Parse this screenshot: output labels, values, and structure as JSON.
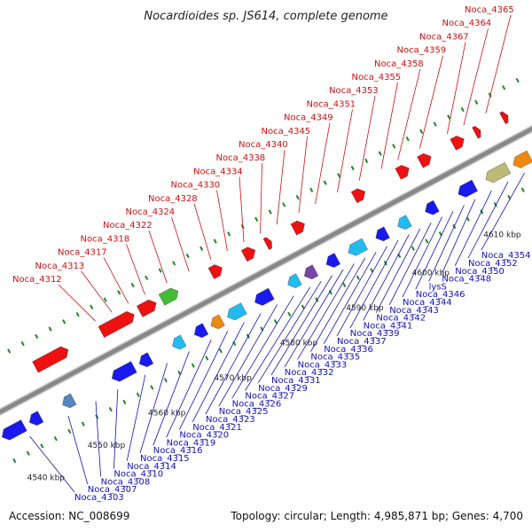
{
  "title": "Nocardioides sp. JS614, complete genome",
  "footer": {
    "accession": "Accession: NC_008699",
    "summary": "Topology: circular; Length: 4,985,871 bp; Genes: 4,700"
  },
  "colors": {
    "backbone": "#888888",
    "forward_gene": "#ee1111",
    "reverse_gene": "#1a1aee",
    "label_forward": "#cc1111",
    "label_reverse": "#1111bb",
    "tick": "#1f8a1f"
  },
  "kbp_ticks": [
    {
      "t": 0.03,
      "label": "4540 kbp"
    },
    {
      "t": 0.14,
      "label": "4550 kbp"
    },
    {
      "t": 0.25,
      "label": "4560 kbp"
    },
    {
      "t": 0.37,
      "label": "4570 kbp"
    },
    {
      "t": 0.49,
      "label": "4580 kbp"
    },
    {
      "t": 0.61,
      "label": "4590 kbp"
    },
    {
      "t": 0.73,
      "label": "4600 kbp"
    },
    {
      "t": 0.86,
      "label": "4610 kbp"
    }
  ],
  "forward_labels": [
    {
      "text": "Noca_4312",
      "t": 0.22
    },
    {
      "text": "Noca_4313",
      "t": 0.25
    },
    {
      "text": "Noca_4317",
      "t": 0.28
    },
    {
      "text": "Noca_4318",
      "t": 0.31
    },
    {
      "text": "Noca_4322",
      "t": 0.35
    },
    {
      "text": "Noca_4324",
      "t": 0.39
    },
    {
      "text": "Noca_4328",
      "t": 0.43
    },
    {
      "text": "Noca_4330",
      "t": 0.46
    },
    {
      "text": "Noca_4334",
      "t": 0.49
    },
    {
      "text": "Noca_4338",
      "t": 0.52
    },
    {
      "text": "Noca_4340",
      "t": 0.55
    },
    {
      "text": "Noca_4345",
      "t": 0.59
    },
    {
      "text": "Noca_4349",
      "t": 0.62
    },
    {
      "text": "Noca_4351",
      "t": 0.66
    },
    {
      "text": "Noca_4353",
      "t": 0.7
    },
    {
      "text": "Noca_4355",
      "t": 0.74
    },
    {
      "text": "Noca_4358",
      "t": 0.77
    },
    {
      "text": "Noca_4359",
      "t": 0.81
    },
    {
      "text": "Noca_4367",
      "t": 0.86
    },
    {
      "text": "Noca_4364",
      "t": 0.89
    },
    {
      "text": "Noca_4365",
      "t": 0.93
    }
  ],
  "reverse_labels": [
    {
      "text": "Noca_4303",
      "t": 0.04
    },
    {
      "text": "Noca_4307",
      "t": 0.11
    },
    {
      "text": "Noca_4308",
      "t": 0.16
    },
    {
      "text": "Noca_4310",
      "t": 0.2
    },
    {
      "text": "Noca_4314",
      "t": 0.25
    },
    {
      "text": "Noca_4315",
      "t": 0.29
    },
    {
      "text": "Noca_4316",
      "t": 0.33
    },
    {
      "text": "Noca_4319",
      "t": 0.37
    },
    {
      "text": "Noca_4320",
      "t": 0.4
    },
    {
      "text": "Noca_4321",
      "t": 0.43
    },
    {
      "text": "Noca_4323",
      "t": 0.46
    },
    {
      "text": "Noca_4325",
      "t": 0.49
    },
    {
      "text": "Noca_4326",
      "t": 0.52
    },
    {
      "text": "Noca_4327",
      "t": 0.55
    },
    {
      "text": "Noca_4329",
      "t": 0.57
    },
    {
      "text": "Noca_4331",
      "t": 0.59
    },
    {
      "text": "Noca_4332",
      "t": 0.61
    },
    {
      "text": "Noca_4333",
      "t": 0.63
    },
    {
      "text": "Noca_4335",
      "t": 0.65
    },
    {
      "text": "Noca_4336",
      "t": 0.67
    },
    {
      "text": "Noca_4337",
      "t": 0.69
    },
    {
      "text": "Noca_4339",
      "t": 0.71
    },
    {
      "text": "Noca_4341",
      "t": 0.73
    },
    {
      "text": "Noca_4342",
      "t": 0.75
    },
    {
      "text": "Noca_4343",
      "t": 0.77
    },
    {
      "text": "Noca_4344",
      "t": 0.79
    },
    {
      "text": "Noca_4346",
      "t": 0.81
    },
    {
      "text": "lysS",
      "t": 0.83
    },
    {
      "text": "Noca_4348",
      "t": 0.85
    },
    {
      "text": "Noca_4350",
      "t": 0.88
    },
    {
      "text": "Noca_4352",
      "t": 0.91
    },
    {
      "text": "Noca_4354",
      "t": 0.94
    }
  ],
  "forward_genes": [
    {
      "t0": 0.0,
      "t1": 0.02,
      "color": "#ee1111"
    },
    {
      "t0": 0.1,
      "t1": 0.16,
      "color": "#ee1111"
    },
    {
      "t0": 0.22,
      "t1": 0.28,
      "color": "#ee1111"
    },
    {
      "t0": 0.29,
      "t1": 0.32,
      "color": "#ee1111"
    },
    {
      "t0": 0.33,
      "t1": 0.36,
      "color": "#44bb33"
    },
    {
      "t0": 0.42,
      "t1": 0.44,
      "color": "#ee1111"
    },
    {
      "t0": 0.48,
      "t1": 0.5,
      "color": "#ee1111"
    },
    {
      "t0": 0.52,
      "t1": 0.53,
      "color": "#ee1111"
    },
    {
      "t0": 0.57,
      "t1": 0.59,
      "color": "#ee1111"
    },
    {
      "t0": 0.68,
      "t1": 0.7,
      "color": "#ee1111"
    },
    {
      "t0": 0.76,
      "t1": 0.78,
      "color": "#ee1111"
    },
    {
      "t0": 0.8,
      "t1": 0.82,
      "color": "#ee1111"
    },
    {
      "t0": 0.86,
      "t1": 0.88,
      "color": "#ee1111"
    },
    {
      "t0": 0.9,
      "t1": 0.91,
      "color": "#ee1111"
    },
    {
      "t0": 0.95,
      "t1": 0.96,
      "color": "#ee1111"
    }
  ],
  "reverse_genes": [
    {
      "t0": 0.0,
      "t1": 0.04,
      "color": "#1a1aee"
    },
    {
      "t0": 0.05,
      "t1": 0.07,
      "color": "#1a1aee"
    },
    {
      "t0": 0.11,
      "t1": 0.13,
      "color": "#5588bb"
    },
    {
      "t0": 0.2,
      "t1": 0.24,
      "color": "#1a1aee"
    },
    {
      "t0": 0.25,
      "t1": 0.27,
      "color": "#1a1aee"
    },
    {
      "t0": 0.31,
      "t1": 0.33,
      "color": "#22bbee"
    },
    {
      "t0": 0.35,
      "t1": 0.37,
      "color": "#1a1aee"
    },
    {
      "t0": 0.38,
      "t1": 0.4,
      "color": "#ee8811"
    },
    {
      "t0": 0.41,
      "t1": 0.44,
      "color": "#22bbee"
    },
    {
      "t0": 0.46,
      "t1": 0.49,
      "color": "#1a1aee"
    },
    {
      "t0": 0.52,
      "t1": 0.54,
      "color": "#22bbee"
    },
    {
      "t0": 0.55,
      "t1": 0.57,
      "color": "#7744aa"
    },
    {
      "t0": 0.59,
      "t1": 0.61,
      "color": "#1a1aee"
    },
    {
      "t0": 0.63,
      "t1": 0.66,
      "color": "#22bbee"
    },
    {
      "t0": 0.68,
      "t1": 0.7,
      "color": "#1a1aee"
    },
    {
      "t0": 0.72,
      "t1": 0.74,
      "color": "#22bbee"
    },
    {
      "t0": 0.77,
      "t1": 0.79,
      "color": "#1a1aee"
    },
    {
      "t0": 0.83,
      "t1": 0.86,
      "color": "#1a1aee"
    },
    {
      "t0": 0.88,
      "t1": 0.92,
      "color": "#bbbb77"
    },
    {
      "t0": 0.93,
      "t1": 0.96,
      "color": "#ee8811"
    }
  ]
}
